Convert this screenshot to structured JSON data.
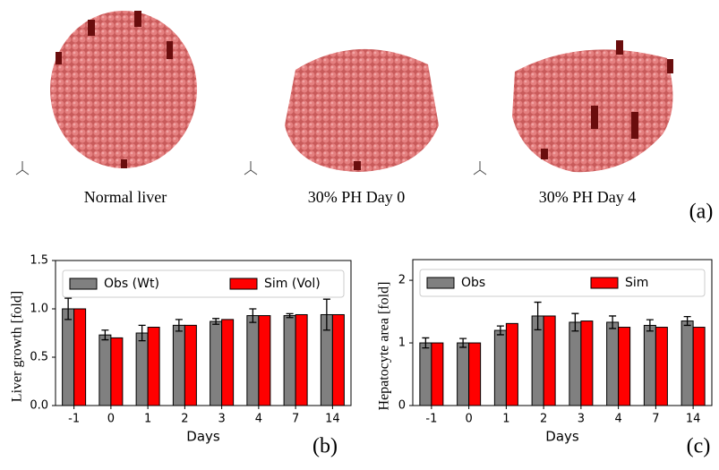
{
  "panel_a": {
    "captions": [
      "Normal liver",
      "30% PH Day 0",
      "30% PH Day 4"
    ],
    "label": "(a)"
  },
  "chart_data": [
    {
      "type": "bar",
      "panel_label": "(b)",
      "ylabel": "Liver growth [fold]",
      "xlabel": "Days",
      "categories": [
        "-1",
        "0",
        "1",
        "2",
        "3",
        "4",
        "7",
        "14"
      ],
      "ylim": [
        0,
        1.5
      ],
      "yticks": [
        {
          "value": 0,
          "label": "0.0"
        },
        {
          "value": 0.5,
          "label": "0.5"
        },
        {
          "value": 1,
          "label": "1.0"
        },
        {
          "value": 1.5,
          "label": "1.5"
        }
      ],
      "series": [
        {
          "name": "Obs (Wt)",
          "color": "#808080",
          "values": [
            1.0,
            0.73,
            0.75,
            0.83,
            0.87,
            0.93,
            0.93,
            0.94
          ],
          "errors": [
            0.11,
            0.05,
            0.08,
            0.06,
            0.03,
            0.07,
            0.02,
            0.16
          ]
        },
        {
          "name": "Sim (Vol)",
          "color": "#ff0000",
          "values": [
            1.0,
            0.7,
            0.81,
            0.83,
            0.89,
            0.93,
            0.94,
            0.94
          ]
        }
      ]
    },
    {
      "type": "bar",
      "panel_label": "(c)",
      "ylabel": "Hepatocyte area [fold]",
      "xlabel": "Days",
      "categories": [
        "-1",
        "0",
        "1",
        "2",
        "3",
        "4",
        "7",
        "14"
      ],
      "ylim": [
        0,
        2.33
      ],
      "yticks": [
        0,
        1,
        2
      ],
      "series": [
        {
          "name": "Obs",
          "color": "#808080",
          "values": [
            1.0,
            1.0,
            1.2,
            1.43,
            1.33,
            1.33,
            1.28,
            1.35
          ],
          "errors": [
            0.08,
            0.07,
            0.07,
            0.22,
            0.14,
            0.1,
            0.09,
            0.07
          ]
        },
        {
          "name": "Sim",
          "color": "#ff0000",
          "values": [
            1.0,
            1.0,
            1.31,
            1.43,
            1.35,
            1.25,
            1.25,
            1.25
          ]
        }
      ]
    }
  ]
}
